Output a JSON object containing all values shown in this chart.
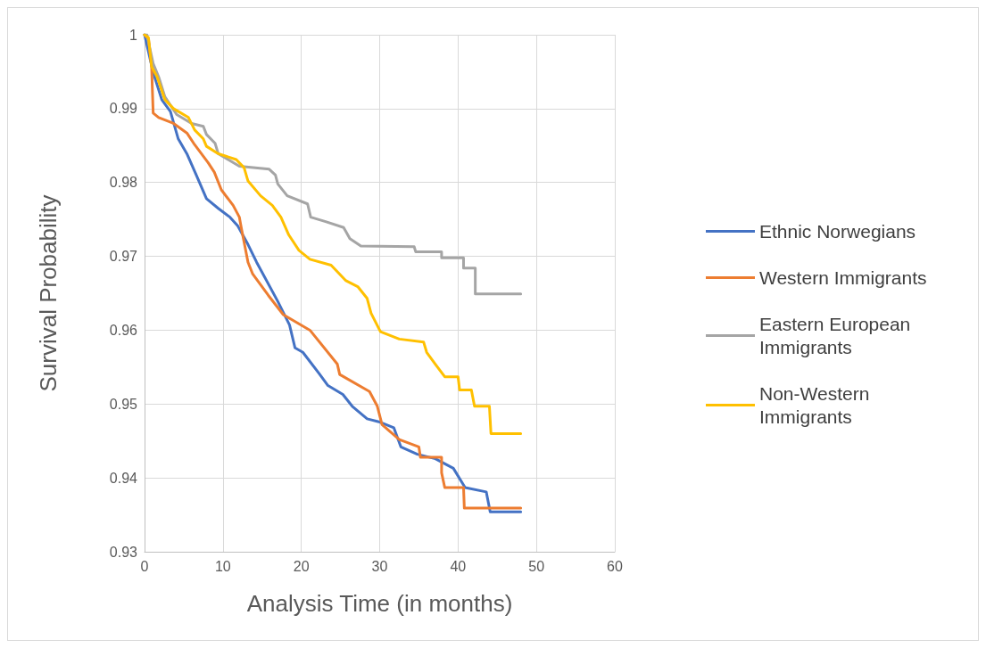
{
  "chart_data": {
    "type": "line",
    "xlabel": "Analysis Time (in months)",
    "ylabel": "Survival Probability",
    "xlim": [
      0,
      60
    ],
    "xticks": [
      0,
      10,
      20,
      30,
      40,
      50,
      60
    ],
    "ylim": [
      0.93,
      1
    ],
    "yticks": [
      0.93,
      0.94,
      0.95,
      0.96,
      0.97,
      0.98,
      0.99,
      1
    ],
    "grid": true,
    "legend": "right",
    "marker": "none",
    "line_style": "solid",
    "series": [
      {
        "name": "Ethnic Norwegians",
        "color": "#4472c4",
        "x": [
          0,
          1.1,
          2.2,
          3.3,
          4.3,
          5.4,
          6.6,
          7.9,
          9.4,
          10.9,
          11.9,
          13.2,
          14.3,
          17.0,
          18.5,
          19.2,
          20.2,
          22.3,
          23.4,
          25.3,
          26.5,
          28.4,
          29.9,
          31.8,
          32.7,
          34.8,
          37.1,
          39.4,
          40.9,
          43.6,
          44.1,
          48
        ],
        "values": [
          1,
          0.9949,
          0.9912,
          0.9896,
          0.9859,
          0.9839,
          0.981,
          0.9778,
          0.9765,
          0.9753,
          0.9741,
          0.9716,
          0.9692,
          0.9639,
          0.9607,
          0.9576,
          0.957,
          0.9541,
          0.9525,
          0.9513,
          0.9497,
          0.948,
          0.9476,
          0.9468,
          0.9442,
          0.9432,
          0.9426,
          0.9413,
          0.9387,
          0.9381,
          0.9354,
          0.9354
        ]
      },
      {
        "name": "Western Immigrants",
        "color": "#ed7d31",
        "x": [
          0,
          0.5,
          0.9,
          1.1,
          1.8,
          3.7,
          5.4,
          6.4,
          8.1,
          8.9,
          9.8,
          11.3,
          12.1,
          12.3,
          13.2,
          13.8,
          15.8,
          17.7,
          21.1,
          24.6,
          24.9,
          28.7,
          29.7,
          30.3,
          32.5,
          35,
          35.2,
          37.9,
          37.9,
          38.3,
          40.7,
          40.8,
          48
        ],
        "values": [
          1,
          0.9994,
          0.9957,
          0.9894,
          0.9888,
          0.988,
          0.9867,
          0.9851,
          0.9827,
          0.9814,
          0.979,
          0.9769,
          0.9753,
          0.9741,
          0.9692,
          0.9676,
          0.9647,
          0.9621,
          0.96,
          0.9554,
          0.954,
          0.9517,
          0.9497,
          0.9472,
          0.9452,
          0.9442,
          0.9428,
          0.9428,
          0.9407,
          0.9387,
          0.9387,
          0.9359,
          0.9359
        ]
      },
      {
        "name": "Eastern European Immigrants",
        "color": "#a5a5a5",
        "x": [
          0,
          0.3,
          1.1,
          1.8,
          2.6,
          4.1,
          6,
          7.5,
          7.9,
          9,
          9.4,
          12.1,
          15.9,
          16.7,
          17,
          18.2,
          20.8,
          21.2,
          23.1,
          25.4,
          26.2,
          27.6,
          34.4,
          34.6,
          37.9,
          37.9,
          40.7,
          40.7,
          42.2,
          42.2,
          48
        ],
        "values": [
          1,
          1,
          0.9961,
          0.9943,
          0.9916,
          0.9892,
          0.988,
          0.9876,
          0.9865,
          0.9853,
          0.9839,
          0.9822,
          0.9818,
          0.981,
          0.9798,
          0.9782,
          0.9771,
          0.9753,
          0.9747,
          0.9739,
          0.9724,
          0.9714,
          0.9713,
          0.9706,
          0.9706,
          0.9698,
          0.9698,
          0.9684,
          0.9684,
          0.9649,
          0.9649
        ]
      },
      {
        "name": "Non-Western Immigrants",
        "color": "#ffc000",
        "x": [
          0,
          0.5,
          0.9,
          1.6,
          2.6,
          3.7,
          5.6,
          6.4,
          7.5,
          7.9,
          9.4,
          11.7,
          12.7,
          13.2,
          14.8,
          16.3,
          17.4,
          18.4,
          19.7,
          21.1,
          23.8,
          25.7,
          27.2,
          28.4,
          28.9,
          30.1,
          32.5,
          35.6,
          36,
          37.1,
          38.3,
          40,
          40.2,
          41.7,
          42.1,
          44,
          44.2,
          48
        ],
        "values": [
          1,
          0.9996,
          0.9957,
          0.9943,
          0.9912,
          0.99,
          0.9888,
          0.9871,
          0.9859,
          0.9849,
          0.9839,
          0.9831,
          0.982,
          0.9802,
          0.9782,
          0.9769,
          0.9753,
          0.9729,
          0.9708,
          0.9696,
          0.9688,
          0.9667,
          0.9659,
          0.9643,
          0.9623,
          0.9598,
          0.9588,
          0.9584,
          0.957,
          0.9554,
          0.9537,
          0.9537,
          0.9519,
          0.9519,
          0.9497,
          0.9497,
          0.946,
          0.946
        ]
      }
    ]
  }
}
